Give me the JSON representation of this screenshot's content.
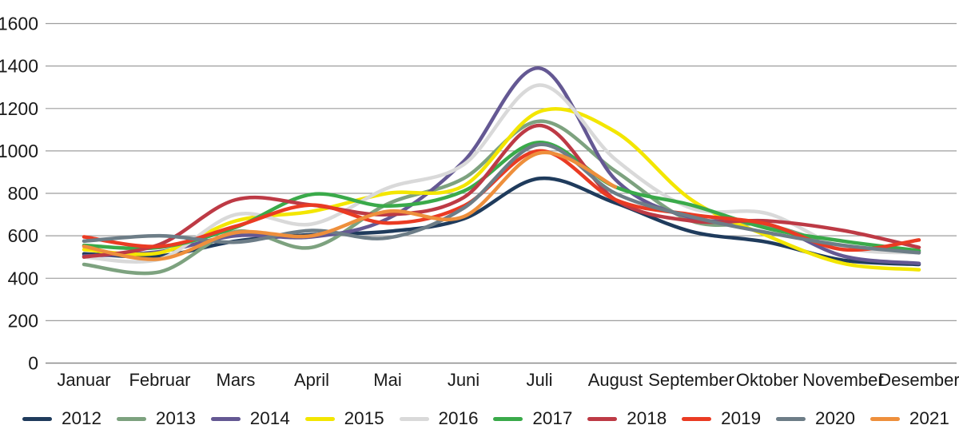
{
  "chart_data": {
    "type": "line",
    "title": "",
    "xlabel": "",
    "ylabel": "",
    "grid": "horizontal",
    "legend_position": "bottom",
    "x_axis": {
      "categories": [
        "Januar",
        "Februar",
        "Mars",
        "April",
        "Mai",
        "Juni",
        "Juli",
        "August",
        "September",
        "Oktober",
        "November",
        "Desember"
      ]
    },
    "y_axis": {
      "min": 0,
      "max": 1600,
      "step": 200,
      "ticks": [
        0,
        200,
        400,
        600,
        800,
        1000,
        1200,
        1400,
        1600
      ]
    },
    "series": [
      {
        "name": "2012",
        "color": "#1f3b5c",
        "values": [
          515,
          505,
          575,
          605,
          620,
          680,
          870,
          755,
          620,
          570,
          485,
          465
        ]
      },
      {
        "name": "2013",
        "color": "#7da27f",
        "values": [
          465,
          430,
          620,
          545,
          750,
          870,
          1140,
          905,
          670,
          650,
          550,
          525
        ]
      },
      {
        "name": "2014",
        "color": "#645893",
        "values": [
          505,
          525,
          600,
          595,
          680,
          950,
          1390,
          865,
          685,
          655,
          505,
          470
        ]
      },
      {
        "name": "2015",
        "color": "#f3e600",
        "values": [
          535,
          520,
          670,
          715,
          800,
          835,
          1185,
          1090,
          770,
          600,
          470,
          440
        ]
      },
      {
        "name": "2016",
        "color": "#d9d9d9",
        "values": [
          500,
          490,
          700,
          655,
          825,
          935,
          1310,
          960,
          730,
          705,
          545,
          520
        ]
      },
      {
        "name": "2017",
        "color": "#3aaa4a",
        "values": [
          555,
          545,
          640,
          795,
          740,
          810,
          1040,
          830,
          745,
          635,
          575,
          530
        ]
      },
      {
        "name": "2018",
        "color": "#bd3a45",
        "values": [
          500,
          560,
          770,
          745,
          700,
          780,
          1120,
          770,
          670,
          670,
          625,
          545
        ]
      },
      {
        "name": "2019",
        "color": "#ea3b23",
        "values": [
          595,
          550,
          645,
          745,
          660,
          740,
          1000,
          770,
          700,
          655,
          535,
          580
        ]
      },
      {
        "name": "2020",
        "color": "#6d7d87",
        "values": [
          575,
          600,
          570,
          625,
          590,
          730,
          1030,
          800,
          690,
          615,
          555,
          520
        ]
      },
      {
        "name": "2021",
        "color": "#ee8f3c",
        "values": [
          550,
          490,
          615,
          600,
          715,
          690,
          990,
          830,
          null,
          null,
          null,
          null
        ]
      }
    ],
    "style": {
      "gridline_color": "#9e9e9e",
      "baseline_color": "#8a8a8a",
      "text_color": "#1a1a1a",
      "line_width": 4.5
    }
  }
}
